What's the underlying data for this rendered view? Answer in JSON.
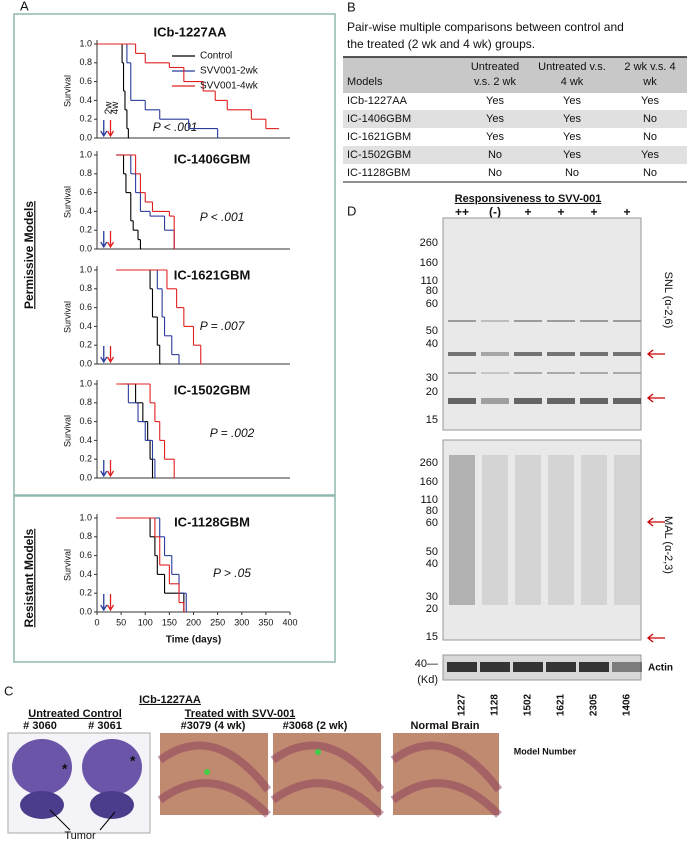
{
  "panel_labels": [
    "A",
    "B",
    "C",
    "D"
  ],
  "panel_a": {
    "permissive": "Permissive Models",
    "resistant": "Resistant Models"
  },
  "chart_data": [
    {
      "type": "line",
      "step": true,
      "title": "ICb-1227AA",
      "ylabel": "Survival",
      "annotation": "P < .001",
      "arrow_labels": [
        "2w",
        "4w"
      ],
      "xlim": [
        0,
        400
      ],
      "ylim": [
        0,
        1
      ],
      "yticks": [
        {
          "value": 0,
          "label": "0.0"
        },
        {
          "value": 0.2,
          "label": "0.2"
        },
        {
          "value": 0.4,
          "label": "0.4"
        },
        {
          "value": 0.6,
          "label": "0.6"
        },
        {
          "value": 0.8,
          "label": "0.8"
        },
        {
          "value": 1,
          "label": "1.0"
        }
      ],
      "series": [
        {
          "name": "Control",
          "color": "#000000",
          "x": [
            0,
            52,
            55,
            58,
            62,
            65
          ],
          "values": [
            1,
            0.8,
            0.5,
            0.3,
            0.1,
            0
          ]
        },
        {
          "name": "SVV001-2wk",
          "color": "#2b3b9c",
          "x": [
            0,
            62,
            70,
            100,
            130,
            190,
            250
          ],
          "values": [
            1,
            0.8,
            0.4,
            0.3,
            0.2,
            0.1,
            0
          ]
        },
        {
          "name": "SVV001-4wk",
          "color": "#e02020",
          "x": [
            0,
            80,
            100,
            150,
            180,
            220,
            245,
            270,
            320,
            350,
            375
          ],
          "values": [
            1,
            0.9,
            0.8,
            0.75,
            0.6,
            0.5,
            0.4,
            0.3,
            0.2,
            0.1,
            0.1
          ]
        }
      ]
    },
    {
      "type": "line",
      "step": true,
      "title": "IC-1406GBM",
      "ylabel": "Survival",
      "annotation": "P < .001",
      "xlim": [
        0,
        400
      ],
      "ylim": [
        0,
        1
      ],
      "yticks": [
        {
          "value": 0,
          "label": "0.0"
        },
        {
          "value": 0.2,
          "label": "0.2"
        },
        {
          "value": 0.4,
          "label": "0.4"
        },
        {
          "value": 0.6,
          "label": "0.6"
        },
        {
          "value": 0.8,
          "label": "0.8"
        },
        {
          "value": 1,
          "label": "1.0"
        }
      ],
      "series": [
        {
          "color": "#000000",
          "x": [
            40,
            55,
            60,
            70,
            75,
            85,
            90
          ],
          "values": [
            1,
            0.8,
            0.6,
            0.3,
            0.2,
            0.1,
            0
          ]
        },
        {
          "color": "#2b3b9c",
          "x": [
            40,
            70,
            80,
            90,
            110,
            140,
            160
          ],
          "values": [
            1,
            0.8,
            0.6,
            0.4,
            0.35,
            0.2,
            0
          ]
        },
        {
          "color": "#e02020",
          "x": [
            40,
            80,
            90,
            100,
            115,
            150,
            160
          ],
          "values": [
            1,
            0.8,
            0.6,
            0.5,
            0.4,
            0.35,
            0
          ]
        }
      ]
    },
    {
      "type": "line",
      "step": true,
      "title": "IC-1621GBM",
      "ylabel": "Survival",
      "annotation": "P = .007",
      "xlim": [
        0,
        400
      ],
      "ylim": [
        0,
        1
      ],
      "yticks": [
        {
          "value": 0,
          "label": "0.0"
        },
        {
          "value": 0.2,
          "label": "0.2"
        },
        {
          "value": 0.4,
          "label": "0.4"
        },
        {
          "value": 0.6,
          "label": "0.6"
        },
        {
          "value": 0.8,
          "label": "0.8"
        },
        {
          "value": 1,
          "label": "1.0"
        }
      ],
      "series": [
        {
          "color": "#000000",
          "x": [
            40,
            110,
            115,
            125,
            130
          ],
          "values": [
            1,
            0.8,
            0.5,
            0.2,
            0
          ]
        },
        {
          "color": "#2b3b9c",
          "x": [
            40,
            125,
            135,
            140,
            155,
            170
          ],
          "values": [
            1,
            0.8,
            0.5,
            0.3,
            0.1,
            0
          ]
        },
        {
          "color": "#e02020",
          "x": [
            40,
            145,
            165,
            180,
            200,
            215
          ],
          "values": [
            1,
            0.8,
            0.6,
            0.4,
            0.2,
            0
          ]
        }
      ]
    },
    {
      "type": "line",
      "step": true,
      "title": "IC-1502GBM",
      "ylabel": "Survival",
      "annotation": "P = .002",
      "xlim": [
        0,
        400
      ],
      "ylim": [
        0,
        1
      ],
      "yticks": [
        {
          "value": 0,
          "label": "0.0"
        },
        {
          "value": 0.2,
          "label": "0.2"
        },
        {
          "value": 0.4,
          "label": "0.4"
        },
        {
          "value": 0.6,
          "label": "0.6"
        },
        {
          "value": 0.8,
          "label": "0.8"
        },
        {
          "value": 1,
          "label": "1.0"
        }
      ],
      "series": [
        {
          "color": "#000000",
          "x": [
            60,
            80,
            95,
            105,
            110,
            115
          ],
          "values": [
            1,
            0.8,
            0.6,
            0.4,
            0.2,
            0
          ]
        },
        {
          "color": "#2b3b9c",
          "x": [
            50,
            65,
            85,
            100,
            115,
            120
          ],
          "values": [
            1,
            0.8,
            0.6,
            0.4,
            0.2,
            0
          ]
        },
        {
          "color": "#e02020",
          "x": [
            40,
            110,
            120,
            130,
            140,
            160
          ],
          "values": [
            1,
            0.8,
            0.6,
            0.4,
            0.2,
            0
          ]
        }
      ]
    },
    {
      "type": "line",
      "step": true,
      "title": "IC-1128GBM",
      "ylabel": "Survival",
      "xlabel": "Time (days)",
      "annotation": "P > .05",
      "xlim": [
        0,
        400
      ],
      "ylim": [
        0,
        1
      ],
      "xticks": [
        0,
        50,
        100,
        150,
        200,
        250,
        300,
        350,
        400
      ],
      "yticks": [
        {
          "value": 0,
          "label": "0.0"
        },
        {
          "value": 0.2,
          "label": "0.2"
        },
        {
          "value": 0.4,
          "label": "0.4"
        },
        {
          "value": 0.6,
          "label": "0.6"
        },
        {
          "value": 0.8,
          "label": "0.8"
        },
        {
          "value": 1,
          "label": "1.0"
        }
      ],
      "series": [
        {
          "color": "#000000",
          "x": [
            40,
            110,
            120,
            125,
            140,
            180
          ],
          "values": [
            1,
            0.8,
            0.6,
            0.4,
            0.2,
            0
          ]
        },
        {
          "color": "#2b3b9c",
          "x": [
            40,
            130,
            140,
            155,
            170,
            185
          ],
          "values": [
            1,
            0.8,
            0.6,
            0.4,
            0.2,
            0
          ]
        },
        {
          "color": "#e02020",
          "x": [
            40,
            120,
            130,
            150,
            170,
            180
          ],
          "values": [
            1,
            0.8,
            0.5,
            0.3,
            0.1,
            0
          ]
        }
      ]
    }
  ],
  "table": {
    "caption": [
      "Pair-wise multiple comparisons between  control and",
      "the treated  (2 wk and 4 wk) groups."
    ],
    "header": [
      [
        "Models"
      ],
      [
        "Untreated",
        "v.s. 2 wk"
      ],
      [
        "Untreated v.s.",
        "4 wk"
      ],
      [
        "2 wk v.s. 4",
        "wk"
      ]
    ],
    "rows": [
      [
        "ICb-1227AA",
        "Yes",
        "Yes",
        "Yes"
      ],
      [
        "IC-1406GBM",
        "Yes",
        "Yes",
        "No"
      ],
      [
        "IC-1621GBM",
        "Yes",
        "Yes",
        "No"
      ],
      [
        "IC-1502GBM",
        "No",
        "Yes",
        "Yes"
      ],
      [
        "IC-1128GBM",
        "No",
        "No",
        "No"
      ]
    ]
  },
  "blot": {
    "title": "Responsiveness to SVV-001",
    "responses": [
      "++",
      "(-)",
      "+",
      "+",
      "+",
      "+"
    ],
    "markers_upper": [
      "260",
      "160",
      "110",
      "80",
      "60",
      "50",
      "40",
      "30",
      "20",
      "15"
    ],
    "markers_lower": [
      "260",
      "160",
      "110",
      "80",
      "60",
      "50",
      "40",
      "30",
      "20",
      "15"
    ],
    "snl": "SNL (α-2,6)",
    "mal": "MAL (α-2,3)",
    "actin": "Actin",
    "actin_marker": "40—",
    "unit": "(Kd)",
    "models": [
      "1227",
      "1128",
      "1502",
      "1621",
      "2305",
      "1406"
    ],
    "xlabel": "Model Number"
  },
  "histology": {
    "model": "ICb-1227AA",
    "untreated": "Untreated Control",
    "treated": "Treated with SVV-001",
    "normal": "Normal Brain",
    "samples": [
      "# 3060",
      "# 3061",
      "#3079  (4 wk)",
      "#3068   (2 wk)"
    ],
    "tumor": "Tumor",
    "asterisk": "*"
  }
}
